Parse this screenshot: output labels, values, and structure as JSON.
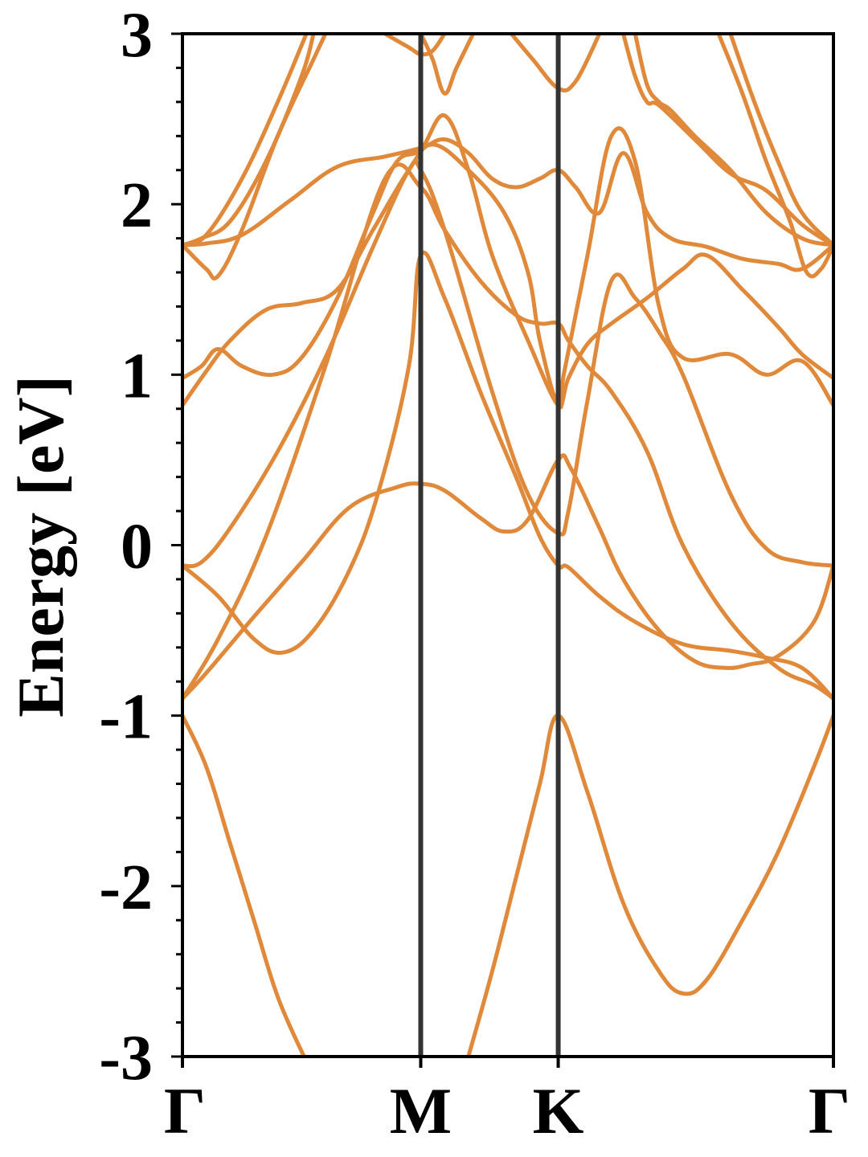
{
  "chart_data": {
    "type": "line",
    "title": "",
    "ylabel": "Energy [eV]",
    "xlabel": "",
    "ylim": [
      -3,
      3
    ],
    "y_ticks": [
      "-3",
      "-2",
      "-1",
      "0",
      "1",
      "2",
      "3"
    ],
    "y_minor_step": 0.2,
    "x_range": [
      0,
      2.732
    ],
    "k_points": [
      {
        "label": "Γ",
        "x": 0
      },
      {
        "label": "M",
        "x": 1.0
      },
      {
        "label": "K",
        "x": 1.577
      },
      {
        "label": "Γ",
        "x": 2.732
      }
    ],
    "grid": false,
    "legend": "none",
    "colors": {
      "bands": "#e0893a",
      "band_highlight": "#f08020",
      "k_lines": "#333333",
      "axes": "#000000"
    },
    "series": [
      {
        "points": [
          [
            0,
            -1.0
          ],
          [
            0.1,
            -1.3
          ],
          [
            0.2,
            -1.75
          ],
          [
            0.3,
            -2.2
          ],
          [
            0.4,
            -2.65
          ],
          [
            0.51,
            -3.0
          ]
        ]
      },
      {
        "points": [
          [
            1.2,
            -3.0
          ],
          [
            1.3,
            -2.5
          ],
          [
            1.4,
            -1.95
          ],
          [
            1.5,
            -1.4
          ],
          [
            1.577,
            -1.0
          ],
          [
            1.7,
            -1.45
          ],
          [
            1.85,
            -2.1
          ],
          [
            2.0,
            -2.5
          ],
          [
            2.1,
            -2.63
          ],
          [
            2.2,
            -2.55
          ],
          [
            2.35,
            -2.2
          ],
          [
            2.5,
            -1.8
          ],
          [
            2.65,
            -1.3
          ],
          [
            2.732,
            -1.0
          ]
        ]
      },
      {
        "points": [
          [
            0,
            -0.9
          ],
          [
            0.1,
            -0.75
          ],
          [
            0.3,
            -0.42
          ],
          [
            0.5,
            -0.1
          ],
          [
            0.7,
            0.22
          ],
          [
            0.9,
            0.34
          ],
          [
            1.0,
            0.36
          ],
          [
            1.1,
            0.32
          ],
          [
            1.25,
            0.16
          ],
          [
            1.35,
            0.08
          ],
          [
            1.45,
            0.15
          ],
          [
            1.577,
            0.5
          ],
          [
            1.63,
            0.45
          ],
          [
            1.75,
            0.1
          ],
          [
            1.85,
            -0.2
          ],
          [
            2.0,
            -0.5
          ],
          [
            2.15,
            -0.68
          ],
          [
            2.28,
            -0.72
          ],
          [
            2.38,
            -0.7
          ],
          [
            2.5,
            -0.65
          ],
          [
            2.65,
            -0.45
          ],
          [
            2.732,
            -0.12
          ]
        ]
      },
      {
        "points": [
          [
            0,
            -0.12
          ],
          [
            0.15,
            -0.3
          ],
          [
            0.3,
            -0.55
          ],
          [
            0.42,
            -0.63
          ],
          [
            0.55,
            -0.5
          ],
          [
            0.7,
            -0.15
          ],
          [
            0.82,
            0.3
          ],
          [
            0.95,
            1.05
          ],
          [
            1.0,
            1.7
          ],
          [
            1.1,
            1.45
          ],
          [
            1.25,
            0.9
          ],
          [
            1.4,
            0.4
          ],
          [
            1.5,
            0.05
          ],
          [
            1.577,
            -0.12
          ],
          [
            1.62,
            -0.13
          ],
          [
            1.75,
            -0.3
          ],
          [
            1.9,
            -0.45
          ],
          [
            2.1,
            -0.58
          ],
          [
            2.3,
            -0.62
          ],
          [
            2.45,
            -0.66
          ],
          [
            2.6,
            -0.72
          ],
          [
            2.732,
            -0.9
          ]
        ]
      },
      {
        "points": [
          [
            0,
            -0.9
          ],
          [
            0.15,
            -0.55
          ],
          [
            0.35,
            0.05
          ],
          [
            0.6,
            1.05
          ],
          [
            0.85,
            2.15
          ],
          [
            1.0,
            2.1
          ],
          [
            1.1,
            1.85
          ],
          [
            1.25,
            1.55
          ],
          [
            1.4,
            1.35
          ],
          [
            1.5,
            1.3
          ],
          [
            1.577,
            1.3
          ],
          [
            1.62,
            1.2
          ],
          [
            1.7,
            1.05
          ],
          [
            1.8,
            0.9
          ],
          [
            1.95,
            0.55
          ],
          [
            2.1,
            0.0
          ],
          [
            2.3,
            -0.45
          ],
          [
            2.5,
            -0.72
          ],
          [
            2.65,
            -0.82
          ],
          [
            2.732,
            -0.9
          ]
        ]
      },
      {
        "points": [
          [
            0,
            -0.12
          ],
          [
            0.08,
            -0.1
          ],
          [
            0.2,
            0.1
          ],
          [
            0.4,
            0.55
          ],
          [
            0.6,
            1.1
          ],
          [
            0.8,
            1.75
          ],
          [
            0.95,
            2.2
          ],
          [
            1.0,
            2.2
          ],
          [
            1.1,
            1.85
          ],
          [
            1.3,
            0.9
          ],
          [
            1.45,
            0.3
          ],
          [
            1.577,
            0.07
          ],
          [
            1.62,
            0.2
          ],
          [
            1.7,
            0.85
          ],
          [
            1.8,
            1.55
          ],
          [
            1.9,
            1.45
          ],
          [
            2.0,
            1.25
          ],
          [
            2.1,
            1.0
          ],
          [
            2.3,
            0.3
          ],
          [
            2.45,
            -0.02
          ],
          [
            2.6,
            -0.1
          ],
          [
            2.732,
            -0.12
          ]
        ]
      },
      {
        "points": [
          [
            0,
            0.82
          ],
          [
            0.1,
            1.02
          ],
          [
            0.2,
            1.2
          ],
          [
            0.35,
            1.38
          ],
          [
            0.5,
            1.42
          ],
          [
            0.65,
            1.5
          ],
          [
            0.8,
            1.85
          ],
          [
            0.95,
            2.2
          ],
          [
            1.05,
            2.35
          ],
          [
            1.2,
            2.2
          ],
          [
            1.35,
            1.95
          ],
          [
            1.45,
            1.6
          ],
          [
            1.5,
            1.2
          ],
          [
            1.577,
            0.82
          ],
          [
            1.62,
            0.98
          ],
          [
            1.7,
            1.18
          ],
          [
            1.8,
            1.3
          ],
          [
            1.95,
            1.45
          ],
          [
            2.1,
            1.62
          ],
          [
            2.2,
            1.7
          ],
          [
            2.35,
            1.5
          ],
          [
            2.5,
            1.28
          ],
          [
            2.6,
            1.12
          ],
          [
            2.732,
            0.98
          ]
        ]
      },
      {
        "points": [
          [
            0,
            0.98
          ],
          [
            0.08,
            1.05
          ],
          [
            0.15,
            1.15
          ],
          [
            0.25,
            1.05
          ],
          [
            0.38,
            1.0
          ],
          [
            0.5,
            1.1
          ],
          [
            0.65,
            1.45
          ],
          [
            0.8,
            1.95
          ],
          [
            0.9,
            2.25
          ],
          [
            1.0,
            2.32
          ],
          [
            1.1,
            2.52
          ],
          [
            1.2,
            2.2
          ],
          [
            1.3,
            1.7
          ],
          [
            1.45,
            1.2
          ],
          [
            1.577,
            0.82
          ],
          [
            1.6,
            1.0
          ],
          [
            1.7,
            1.7
          ],
          [
            1.8,
            2.4
          ],
          [
            1.9,
            2.25
          ],
          [
            2.0,
            1.4
          ],
          [
            2.1,
            1.1
          ],
          [
            2.3,
            1.12
          ],
          [
            2.45,
            1.0
          ],
          [
            2.6,
            1.08
          ],
          [
            2.732,
            0.82
          ]
        ]
      },
      {
        "points": [
          [
            0,
            1.76
          ],
          [
            0.1,
            1.77
          ],
          [
            0.25,
            1.82
          ],
          [
            0.45,
            2.02
          ],
          [
            0.65,
            2.22
          ],
          [
            0.85,
            2.28
          ],
          [
            1.0,
            2.33
          ],
          [
            1.1,
            2.38
          ],
          [
            1.2,
            2.3
          ],
          [
            1.3,
            2.15
          ],
          [
            1.4,
            2.1
          ],
          [
            1.5,
            2.15
          ],
          [
            1.577,
            2.2
          ],
          [
            1.65,
            2.1
          ],
          [
            1.75,
            1.95
          ],
          [
            1.85,
            2.3
          ],
          [
            1.95,
            1.95
          ],
          [
            2.05,
            1.8
          ],
          [
            2.2,
            1.75
          ],
          [
            2.35,
            1.68
          ],
          [
            2.5,
            1.65
          ],
          [
            2.6,
            1.62
          ],
          [
            2.732,
            1.76
          ]
        ]
      },
      {
        "points": [
          [
            0,
            1.76
          ],
          [
            0.1,
            1.62
          ],
          [
            0.15,
            1.58
          ],
          [
            0.25,
            1.85
          ],
          [
            0.4,
            2.4
          ],
          [
            0.55,
            2.85
          ],
          [
            0.6,
            3.0
          ]
        ]
      },
      {
        "points": [
          [
            0,
            1.76
          ],
          [
            0.1,
            1.82
          ],
          [
            0.25,
            2.15
          ],
          [
            0.4,
            2.6
          ],
          [
            0.52,
            3.0
          ]
        ]
      },
      {
        "points": [
          [
            0,
            1.76
          ],
          [
            0.08,
            1.8
          ],
          [
            0.2,
            1.9
          ],
          [
            0.35,
            2.25
          ],
          [
            0.5,
            2.75
          ],
          [
            0.55,
            3.0
          ]
        ]
      },
      {
        "points": [
          [
            0.85,
            3.0
          ],
          [
            0.95,
            2.92
          ],
          [
            1.0,
            2.88
          ],
          [
            1.05,
            2.9
          ],
          [
            1.1,
            3.0
          ]
        ]
      },
      {
        "points": [
          [
            1.0,
            3.0
          ],
          [
            1.05,
            2.85
          ],
          [
            1.1,
            2.65
          ],
          [
            1.15,
            2.8
          ],
          [
            1.22,
            3.0
          ]
        ]
      },
      {
        "points": [
          [
            1.38,
            3.0
          ],
          [
            1.47,
            2.85
          ],
          [
            1.577,
            2.68
          ],
          [
            1.65,
            2.72
          ],
          [
            1.75,
            3.0
          ]
        ]
      },
      {
        "points": [
          [
            1.9,
            3.0
          ],
          [
            1.95,
            2.7
          ],
          [
            2.0,
            2.6
          ],
          [
            2.05,
            2.55
          ],
          [
            2.15,
            2.4
          ],
          [
            2.3,
            2.2
          ],
          [
            2.45,
            1.95
          ],
          [
            2.6,
            1.8
          ],
          [
            2.732,
            1.76
          ]
        ]
      },
      {
        "points": [
          [
            1.85,
            3.0
          ],
          [
            1.9,
            2.75
          ],
          [
            1.95,
            2.6
          ],
          [
            2.0,
            2.58
          ],
          [
            2.15,
            2.38
          ],
          [
            2.3,
            2.18
          ],
          [
            2.45,
            2.08
          ],
          [
            2.6,
            1.88
          ],
          [
            2.732,
            1.76
          ]
        ]
      },
      {
        "points": [
          [
            2.3,
            3.0
          ],
          [
            2.4,
            2.6
          ],
          [
            2.5,
            2.25
          ],
          [
            2.6,
            1.95
          ],
          [
            2.732,
            1.76
          ]
        ]
      },
      {
        "points": [
          [
            2.25,
            3.0
          ],
          [
            2.35,
            2.65
          ],
          [
            2.45,
            2.25
          ],
          [
            2.55,
            1.9
          ],
          [
            2.62,
            1.6
          ],
          [
            2.68,
            1.62
          ],
          [
            2.732,
            1.76
          ]
        ]
      }
    ]
  }
}
